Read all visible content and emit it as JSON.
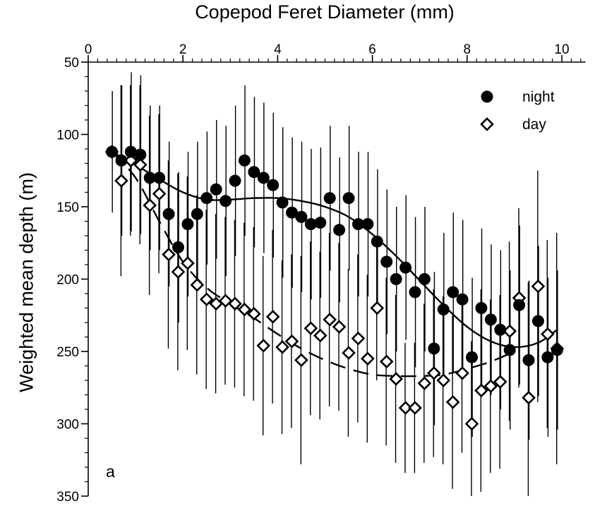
{
  "chart_data": {
    "type": "scatter",
    "title": "",
    "panel_label": "a",
    "xlabel": "Copepod Feret Diameter (mm)",
    "ylabel": "Weighted mean depth (m)",
    "x_axis_position": "top",
    "y_axis_inverted": true,
    "xlim": [
      0,
      10.5
    ],
    "ylim": [
      50,
      350
    ],
    "xticks": [
      0,
      2,
      4,
      6,
      8,
      10
    ],
    "yticks": [
      50,
      100,
      150,
      200,
      250,
      300,
      350
    ],
    "x_minor_step": 0.2,
    "y_minor_step": 10,
    "grid": false,
    "legend_position": "top-right",
    "series": [
      {
        "name": "night",
        "marker": "filled-circle",
        "color": "#000000",
        "points": [
          [
            0.5,
            112,
            42
          ],
          [
            0.7,
            118,
            52
          ],
          [
            0.9,
            112,
            55
          ],
          [
            1.1,
            114,
            55
          ],
          [
            1.3,
            130,
            50
          ],
          [
            1.5,
            130,
            50
          ],
          [
            1.7,
            155,
            50
          ],
          [
            1.9,
            178,
            52
          ],
          [
            2.1,
            162,
            50
          ],
          [
            2.3,
            155,
            50
          ],
          [
            2.5,
            144,
            46
          ],
          [
            2.7,
            138,
            48
          ],
          [
            2.9,
            146,
            52
          ],
          [
            3.1,
            132,
            52
          ],
          [
            3.3,
            118,
            52
          ],
          [
            3.5,
            126,
            52
          ],
          [
            3.7,
            130,
            52
          ],
          [
            3.9,
            135,
            50
          ],
          [
            4.1,
            147,
            52
          ],
          [
            4.3,
            154,
            52
          ],
          [
            4.5,
            157,
            52
          ],
          [
            4.7,
            162,
            52
          ],
          [
            4.9,
            161,
            52
          ],
          [
            5.1,
            144,
            50
          ],
          [
            5.3,
            166,
            50
          ],
          [
            5.5,
            144,
            50
          ],
          [
            5.7,
            162,
            50
          ],
          [
            5.9,
            162,
            50
          ],
          [
            6.1,
            174,
            50
          ],
          [
            6.3,
            188,
            50
          ],
          [
            6.5,
            200,
            50
          ],
          [
            6.7,
            192,
            50
          ],
          [
            6.9,
            209,
            52
          ],
          [
            7.1,
            200,
            50
          ],
          [
            7.3,
            248,
            53
          ],
          [
            7.5,
            221,
            53
          ],
          [
            7.7,
            209,
            55
          ],
          [
            7.9,
            214,
            55
          ],
          [
            8.1,
            254,
            55
          ],
          [
            8.3,
            220,
            55
          ],
          [
            8.5,
            228,
            52
          ],
          [
            8.7,
            235,
            55
          ],
          [
            8.9,
            249,
            55
          ],
          [
            9.1,
            218,
            55
          ],
          [
            9.3,
            256,
            55
          ],
          [
            9.5,
            229,
            52
          ],
          [
            9.7,
            254,
            55
          ],
          [
            9.9,
            249,
            55
          ]
        ]
      },
      {
        "name": "day",
        "marker": "open-diamond",
        "color": "#000000",
        "points": [
          [
            0.5,
            112,
            0
          ],
          [
            0.7,
            132,
            66
          ],
          [
            0.9,
            118,
            52
          ],
          [
            1.1,
            121,
            55
          ],
          [
            1.3,
            149,
            62
          ],
          [
            1.5,
            141,
            55
          ],
          [
            1.7,
            183,
            65
          ],
          [
            1.9,
            195,
            68
          ],
          [
            2.1,
            189,
            60
          ],
          [
            2.3,
            204,
            62
          ],
          [
            2.5,
            214,
            62
          ],
          [
            2.7,
            217,
            62
          ],
          [
            2.9,
            215,
            58
          ],
          [
            3.1,
            217,
            58
          ],
          [
            3.3,
            221,
            60
          ],
          [
            3.5,
            224,
            60
          ],
          [
            3.7,
            246,
            62
          ],
          [
            3.9,
            226,
            60
          ],
          [
            4.1,
            247,
            60
          ],
          [
            4.3,
            243,
            60
          ],
          [
            4.5,
            256,
            72
          ],
          [
            4.7,
            234,
            60
          ],
          [
            4.9,
            239,
            58
          ],
          [
            5.1,
            228,
            60
          ],
          [
            5.3,
            233,
            58
          ],
          [
            5.5,
            251,
            58
          ],
          [
            5.7,
            241,
            58
          ],
          [
            5.9,
            255,
            58
          ],
          [
            6.1,
            220,
            50
          ],
          [
            6.3,
            257,
            58
          ],
          [
            6.5,
            269,
            58
          ],
          [
            6.7,
            289,
            45
          ],
          [
            6.9,
            289,
            45
          ],
          [
            7.1,
            272,
            55
          ],
          [
            7.3,
            265,
            58
          ],
          [
            7.5,
            270,
            58
          ],
          [
            7.7,
            285,
            60
          ],
          [
            7.9,
            265,
            55
          ],
          [
            8.1,
            300,
            57
          ],
          [
            8.3,
            277,
            70
          ],
          [
            8.5,
            274,
            60
          ],
          [
            8.7,
            271,
            60
          ],
          [
            8.9,
            236,
            62
          ],
          [
            9.1,
            213,
            62
          ],
          [
            9.3,
            282,
            80
          ],
          [
            9.5,
            205,
            80
          ],
          [
            9.7,
            238,
            65
          ],
          [
            9.9,
            248,
            80
          ]
        ]
      }
    ],
    "fits": [
      {
        "series": "night",
        "style": "solid",
        "x": [
          0.5,
          1.0,
          1.5,
          2.0,
          2.5,
          3.0,
          3.5,
          4.0,
          4.5,
          5.0,
          5.5,
          6.0,
          6.5,
          7.0,
          7.5,
          8.0,
          8.5,
          9.0,
          9.5,
          9.9
        ],
        "y": [
          112,
          121,
          131,
          140,
          145,
          145,
          144,
          144,
          146,
          150,
          157,
          169,
          184,
          201,
          218,
          233,
          243,
          247,
          244,
          235
        ]
      },
      {
        "series": "day",
        "style": "dashed",
        "x": [
          0.5,
          1.0,
          1.5,
          2.0,
          2.5,
          3.0,
          3.5,
          4.0,
          4.5,
          5.0,
          5.5,
          6.0,
          6.5,
          7.0,
          7.5,
          8.0,
          8.5,
          9.0
        ],
        "y": [
          112,
          130,
          160,
          188,
          206,
          217,
          227,
          238,
          248,
          256,
          262,
          266,
          267,
          267,
          266,
          262,
          257,
          250
        ]
      }
    ]
  }
}
